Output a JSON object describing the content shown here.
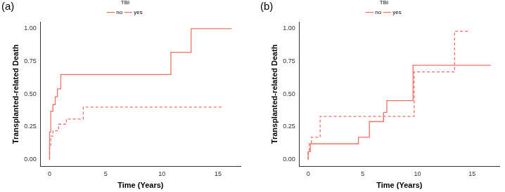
{
  "chart_data": [
    {
      "type": "line",
      "title": "(a)",
      "x_label": "Time (Years)",
      "y_label": "Transplanted-related Death",
      "legend": "top",
      "legend_title": "TBI",
      "grid": false,
      "xlim": [
        -0.8,
        17
      ],
      "xticks": [
        0,
        5,
        10,
        15
      ],
      "ylim": [
        -0.05,
        1.05
      ],
      "yticks": [
        {
          "value": 0,
          "label": "0.00"
        },
        {
          "value": 0.25,
          "label": "0.25"
        },
        {
          "value": 0.5,
          "label": "0.50"
        },
        {
          "value": 0.75,
          "label": "0.75"
        },
        {
          "value": 1,
          "label": "1.00"
        }
      ],
      "series": [
        {
          "name": "no",
          "color": "#f07068",
          "line_style": "solid",
          "x": [
            0,
            0.1,
            0.3,
            0.5,
            0.7,
            1.0,
            10.8,
            12.6,
            16.2
          ],
          "values": [
            0,
            0.21,
            0.37,
            0.42,
            0.48,
            0.54,
            0.65,
            0.82,
            1.0
          ]
        },
        {
          "name": "yes",
          "color": "#f07068",
          "line_style": "dashed",
          "x": [
            0,
            0.1,
            0.3,
            0.8,
            1.5,
            3.0,
            7.8,
            15.3
          ],
          "values": [
            0,
            0.1,
            0.18,
            0.22,
            0.27,
            0.31,
            0.4,
            0.4
          ]
        }
      ]
    },
    {
      "type": "line",
      "title": "(b)",
      "x_label": "Time (Years)",
      "y_label": "Transplanted-related Death",
      "legend": "top",
      "legend_title": "TBI",
      "grid": false,
      "xlim": [
        -0.8,
        17.5
      ],
      "xticks": [
        0,
        5,
        10,
        15
      ],
      "ylim": [
        -0.05,
        1.05
      ],
      "yticks": [
        {
          "value": 0,
          "label": "0.00"
        },
        {
          "value": 0.25,
          "label": "0.25"
        },
        {
          "value": 0.5,
          "label": "0.50"
        },
        {
          "value": 0.75,
          "label": "0.75"
        },
        {
          "value": 1,
          "label": "1.00"
        }
      ],
      "series": [
        {
          "name": "no",
          "color": "#f07068",
          "line_style": "solid",
          "x": [
            0,
            0.2,
            4.6,
            5.6,
            6.9,
            7.2,
            9.6,
            13.7,
            16.7
          ],
          "values": [
            0,
            0.06,
            0.12,
            0.17,
            0.29,
            0.36,
            0.45,
            0.72,
            0.72
          ]
        },
        {
          "name": "yes",
          "color": "#f07068",
          "line_style": "dashed",
          "x": [
            0,
            0.1,
            0.3,
            1.1,
            9.7,
            13.4,
            14.8
          ],
          "values": [
            0,
            0.07,
            0.13,
            0.17,
            0.33,
            0.67,
            0.98
          ]
        }
      ]
    }
  ]
}
